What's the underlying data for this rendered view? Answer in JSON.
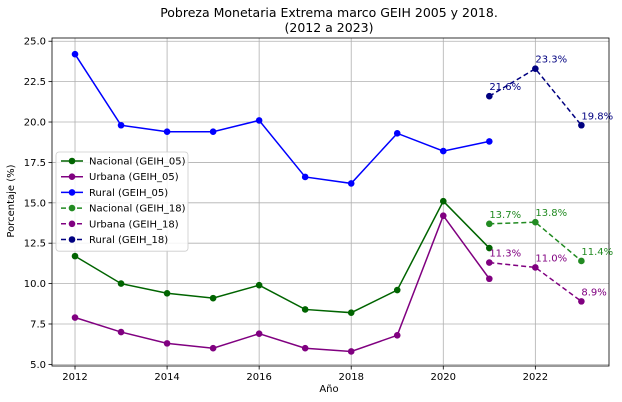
{
  "chart_data": {
    "type": "line",
    "title_line1": "Pobreza Monetaria Extrema marco GEIH 2005 y 2018.",
    "title_line2": "(2012 a 2023)",
    "xlabel": "Año",
    "ylabel": "Porcentaje (%)",
    "xlim": [
      2011.5,
      2023.6
    ],
    "ylim": [
      4.9,
      25.2
    ],
    "x_ticks": [
      2012,
      2014,
      2016,
      2018,
      2020,
      2022
    ],
    "y_ticks": [
      5.0,
      7.5,
      10.0,
      12.5,
      15.0,
      17.5,
      20.0,
      22.5,
      25.0
    ],
    "y_tick_labels": [
      "5.0",
      "7.5",
      "10.0",
      "12.5",
      "15.0",
      "17.5",
      "20.0",
      "22.5",
      "25.0"
    ],
    "grid": true,
    "legend_position": "center-left",
    "series": [
      {
        "name": "Nacional (GEIH_05)",
        "color": "#006400",
        "dashed": false,
        "x": [
          2012,
          2013,
          2014,
          2015,
          2016,
          2017,
          2018,
          2019,
          2020,
          2021
        ],
        "values": [
          11.7,
          10.0,
          9.4,
          9.1,
          9.9,
          8.4,
          8.2,
          9.6,
          15.1,
          12.2
        ]
      },
      {
        "name": "Urbana (GEIH_05)",
        "color": "#800080",
        "dashed": false,
        "x": [
          2012,
          2013,
          2014,
          2015,
          2016,
          2017,
          2018,
          2019,
          2020,
          2021
        ],
        "values": [
          7.9,
          7.0,
          6.3,
          6.0,
          6.9,
          6.0,
          5.8,
          6.8,
          14.2,
          10.3
        ]
      },
      {
        "name": "Rural (GEIH_05)",
        "color": "#0000ff",
        "dashed": false,
        "x": [
          2012,
          2013,
          2014,
          2015,
          2016,
          2017,
          2018,
          2019,
          2020,
          2021
        ],
        "values": [
          24.2,
          19.8,
          19.4,
          19.4,
          20.1,
          16.6,
          16.2,
          19.3,
          18.2,
          18.8
        ]
      },
      {
        "name": "Nacional (GEIH_18)",
        "color": "#228b22",
        "dashed": true,
        "x": [
          2021,
          2022,
          2023
        ],
        "values": [
          13.7,
          13.8,
          11.4
        ],
        "labels": [
          "13.7%",
          "13.8%",
          "11.4%"
        ]
      },
      {
        "name": "Urbana (GEIH_18)",
        "color": "#800080",
        "dashed": true,
        "x": [
          2021,
          2022,
          2023
        ],
        "values": [
          11.3,
          11.0,
          8.9
        ],
        "labels": [
          "11.3%",
          "11.0%",
          "8.9%"
        ]
      },
      {
        "name": "Rural (GEIH_18)",
        "color": "#000080",
        "dashed": true,
        "x": [
          2021,
          2022,
          2023
        ],
        "values": [
          21.6,
          23.3,
          19.8
        ],
        "labels": [
          "21.6%",
          "23.3%",
          "19.8%"
        ]
      }
    ]
  }
}
